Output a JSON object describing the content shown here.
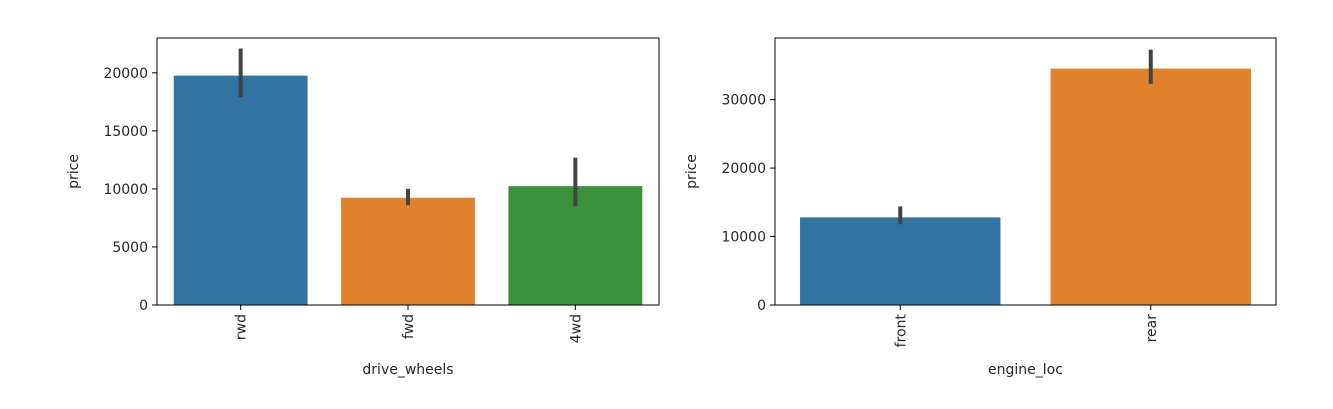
{
  "chart_data": [
    {
      "type": "bar",
      "xlabel": "drive_wheels",
      "ylabel": "price",
      "categories": [
        "rwd",
        "fwd",
        "4wd"
      ],
      "values": [
        19760,
        9240,
        10240
      ],
      "error_low": [
        17900,
        8600,
        8500
      ],
      "error_high": [
        22100,
        10000,
        12700
      ],
      "colors": [
        "#3274a1",
        "#e1812c",
        "#3a923a"
      ],
      "ylim": [
        0,
        23000
      ],
      "yticks": [
        0,
        5000,
        10000,
        15000,
        20000
      ],
      "yticklabels": [
        "0",
        "5000",
        "10000",
        "15000",
        "20000"
      ],
      "grid": false,
      "tick_rotation": 90
    },
    {
      "type": "bar",
      "xlabel": "engine_loc",
      "ylabel": "price",
      "categories": [
        "front",
        "rear"
      ],
      "values": [
        12800,
        34530
      ],
      "error_low": [
        11800,
        32300
      ],
      "error_high": [
        14400,
        37300
      ],
      "colors": [
        "#3274a1",
        "#e1812c"
      ],
      "ylim": [
        0,
        39000
      ],
      "yticks": [
        0,
        10000,
        20000,
        30000
      ],
      "yticklabels": [
        "0",
        "10000",
        "20000",
        "30000"
      ],
      "grid": false,
      "tick_rotation": 90
    }
  ]
}
